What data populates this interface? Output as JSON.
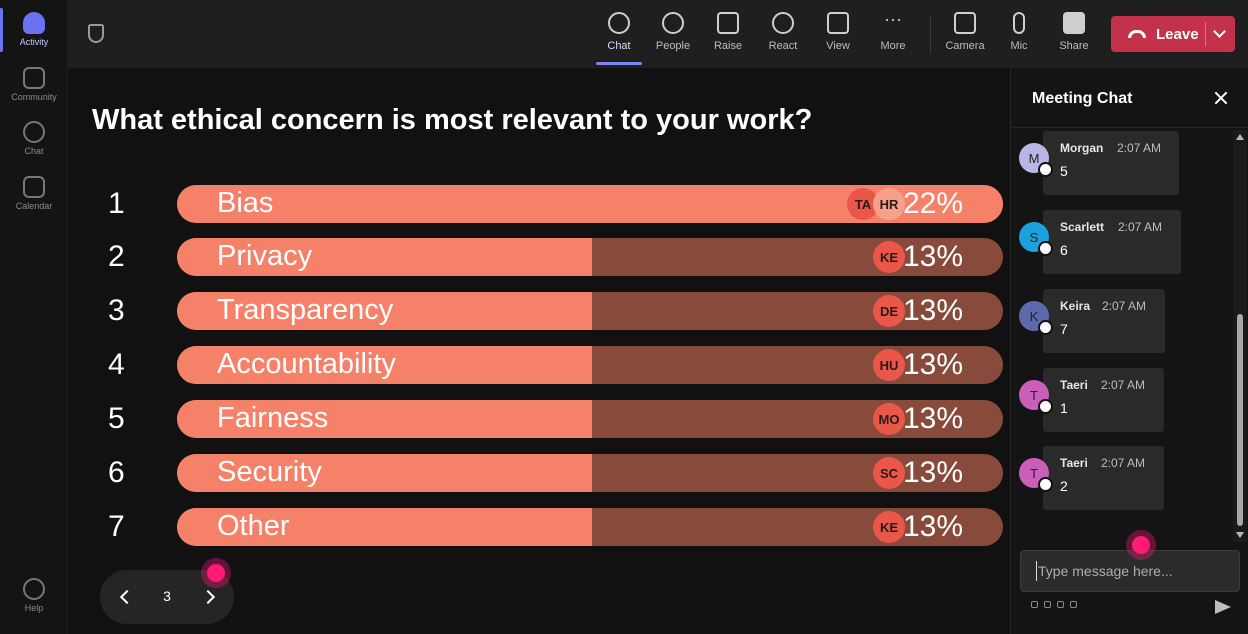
{
  "rail": {
    "items": [
      {
        "label": "Activity",
        "icon": "bell-icon",
        "active": true
      },
      {
        "label": "Community",
        "icon": "community-icon"
      },
      {
        "label": "Chat",
        "icon": "chat-icon"
      },
      {
        "label": "Calendar",
        "icon": "calendar-icon"
      }
    ],
    "help": {
      "label": "Help",
      "icon": "help-icon"
    }
  },
  "toolbar": {
    "chat": "Chat",
    "people": "People",
    "raise": "Raise",
    "react": "React",
    "view": "View",
    "more": "More",
    "camera": "Camera",
    "mic": "Mic",
    "share": "Share",
    "leave": "Leave"
  },
  "poll": {
    "question": "What ethical concern is most relevant to your work?",
    "options": [
      {
        "num": "1",
        "label": "Bias",
        "pct": "22%",
        "value": 22,
        "avatars": [
          "TA",
          "HR"
        ]
      },
      {
        "num": "2",
        "label": "Privacy",
        "pct": "13%",
        "value": 13,
        "avatars": [
          "KE"
        ]
      },
      {
        "num": "3",
        "label": "Transparency",
        "pct": "13%",
        "value": 13,
        "avatars": [
          "DE"
        ]
      },
      {
        "num": "4",
        "label": "Accountability",
        "pct": "13%",
        "value": 13,
        "avatars": [
          "HU"
        ]
      },
      {
        "num": "5",
        "label": "Fairness",
        "pct": "13%",
        "value": 13,
        "avatars": [
          "MO"
        ]
      },
      {
        "num": "6",
        "label": "Security",
        "pct": "13%",
        "value": 13,
        "avatars": [
          "SC"
        ]
      },
      {
        "num": "7",
        "label": "Other",
        "pct": "13%",
        "value": 13,
        "avatars": [
          "KE"
        ]
      }
    ],
    "page": "3"
  },
  "chat": {
    "title": "Meeting Chat",
    "messages": [
      {
        "initial": "M",
        "name": "Morgan",
        "time": "2:07 AM",
        "text": "5",
        "color": "#b9b6e6"
      },
      {
        "initial": "S",
        "name": "Scarlett",
        "time": "2:07 AM",
        "text": "6",
        "color": "#1da1dc"
      },
      {
        "initial": "K",
        "name": "Keira",
        "time": "2:07 AM",
        "text": "7",
        "color": "#5c6aad"
      },
      {
        "initial": "T",
        "name": "Taeri",
        "time": "2:07 AM",
        "text": "1",
        "color": "#c95fb8"
      },
      {
        "initial": "T",
        "name": "Taeri",
        "time": "2:07 AM",
        "text": "2",
        "color": "#c95fb8"
      }
    ],
    "placeholder": "Type message here..."
  },
  "colors": {
    "bar_fill": "#f58168",
    "bar_track": "#874a3b",
    "leave": "#c4314b",
    "accent": "#7f85f5"
  }
}
